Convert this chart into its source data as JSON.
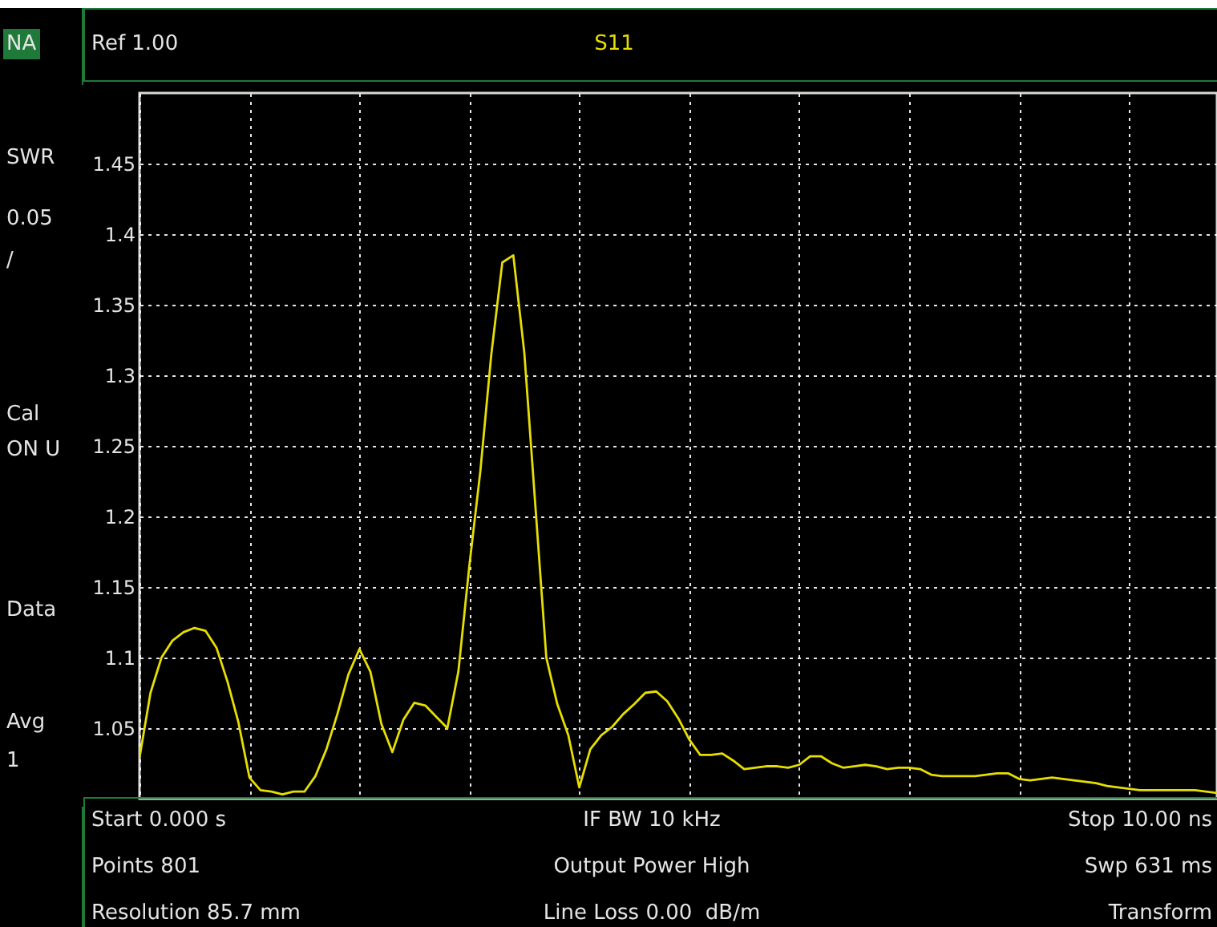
{
  "chart_data": {
    "type": "line",
    "title": "S11",
    "subtitle": "Ref 1.00",
    "annotations": [
      "NA",
      "SWR",
      "0.05",
      "/",
      "Cal",
      "ON U",
      "Data",
      "Avg",
      "1",
      "Start 0.000 s",
      "IF BW 10 kHz",
      "Stop 10.00 ns",
      "Points 801",
      "Output Power High",
      "Swp 631 ms",
      "Resolution 85.7 mm",
      "Line Loss 0.00  dB/m",
      "Transform"
    ],
    "categories": [
      null,
      null,
      null,
      null,
      null,
      null,
      null,
      null,
      null,
      null,
      null,
      null,
      null,
      null,
      null,
      null,
      null,
      null,
      null,
      null,
      null,
      null,
      null,
      null,
      null,
      null,
      null,
      null,
      null,
      null,
      null,
      null,
      null,
      null,
      null,
      null,
      null,
      null,
      null,
      null,
      null,
      null,
      null,
      null,
      null,
      null,
      null,
      null,
      null,
      null,
      null,
      null,
      null,
      null,
      null,
      null,
      null,
      null,
      null,
      null,
      null,
      null,
      null,
      null,
      null,
      null,
      null,
      null,
      null,
      null,
      null,
      null,
      null,
      null,
      null,
      null,
      null,
      null,
      null,
      null,
      null,
      null,
      null,
      null,
      null,
      null,
      null,
      null,
      null,
      null,
      null,
      null,
      null,
      null,
      null,
      null,
      null,
      null,
      null
    ],
    "series": [
      {
        "color": "#e6de00",
        "values": [
          1.029,
          1.075,
          1.1,
          1.112,
          1.118,
          1.121,
          1.119,
          1.107,
          1.083,
          1.054,
          1.015,
          1.006,
          1.005,
          1.003,
          1.005,
          1.005,
          1.016,
          1.035,
          1.06,
          1.088,
          1.106,
          1.09,
          1.053,
          1.033,
          1.056,
          1.068,
          1.066,
          1.058,
          1.05,
          1.09,
          1.165,
          1.232,
          1.315,
          1.38,
          1.385,
          1.316,
          1.208,
          1.1,
          1.067,
          1.045,
          1.008,
          1.035,
          1.045,
          1.051,
          1.06,
          1.067,
          1.075,
          1.076,
          1.069,
          1.057,
          1.042,
          1.031,
          1.031,
          1.032,
          1.027,
          1.021,
          1.022,
          1.023,
          1.023,
          1.022,
          1.024,
          1.03,
          1.03,
          1.025,
          1.022,
          1.023,
          1.024,
          1.023,
          1.021,
          1.022,
          1.022,
          1.021,
          1.017,
          1.016,
          1.016,
          1.016,
          1.016,
          1.017,
          1.018,
          1.018,
          1.014,
          1.013,
          1.014,
          1.015,
          1.014,
          1.013,
          1.012,
          1.011,
          1.009,
          1.008,
          1.007,
          1.006,
          1.006,
          1.006,
          1.006,
          1.006,
          1.006,
          1.005,
          1.004
        ]
      }
    ],
    "ylim": [
      1.0,
      1.5
    ],
    "yticks": [
      1.05,
      1.1,
      1.15,
      1.2,
      1.25,
      1.3,
      1.35,
      1.4,
      1.45
    ],
    "tick_labels": "y",
    "grid": true,
    "marker": "none",
    "line_style": "solid"
  }
}
